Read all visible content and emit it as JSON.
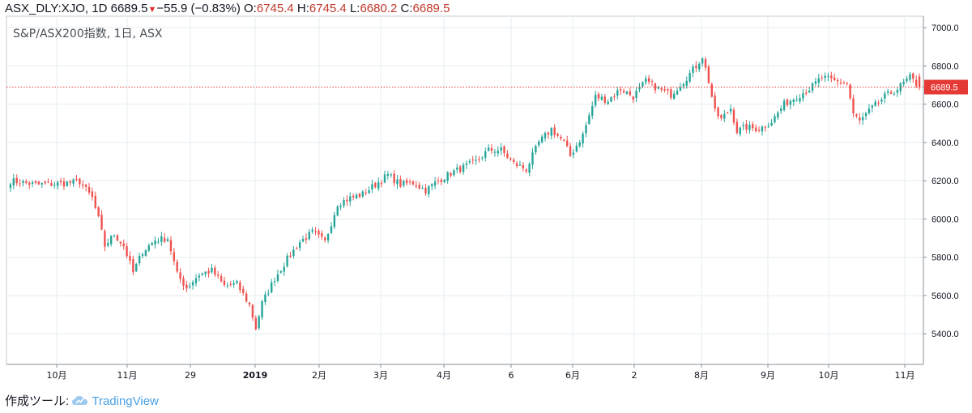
{
  "header": {
    "symbol": "ASX_DLY:XJO, 1D",
    "last": "6689.5",
    "change": "−55.9 (−0.83%)",
    "o_label": "O:",
    "o_value": "6745.4",
    "h_label": "H:",
    "h_value": "6745.4",
    "l_label": "L:",
    "l_value": "6680.2",
    "c_label": "C:",
    "c_value": "6689.5"
  },
  "footer": {
    "label": "作成ツール:",
    "brand": "TradingView"
  },
  "colors": {
    "up": "#26a69a",
    "down": "#ef5350",
    "grid": "#e6edf0",
    "last_price": "#e53935"
  },
  "chart_data": {
    "type": "candlestick",
    "title": "S&P/ASX200指数, 1日, ASX",
    "ylim": [
      5240,
      7060
    ],
    "y_ticks": [
      "7000.0",
      "6800.0",
      "6600.0",
      "6400.0",
      "6200.0",
      "6000.0",
      "5800.0",
      "5600.0",
      "5400.0"
    ],
    "x_ticks": [
      "10月",
      "11月",
      "29",
      "2019",
      "2月",
      "3月",
      "4月",
      "6",
      "6月",
      "2",
      "8月",
      "9月",
      "10月",
      "11月"
    ],
    "last_price_label": "6689.5",
    "last_price": 6689.5,
    "grid": true,
    "anchors": [
      [
        0,
        6200
      ],
      [
        8,
        6180
      ],
      [
        16,
        6185
      ],
      [
        22,
        6195
      ],
      [
        26,
        6110
      ],
      [
        28,
        6000
      ],
      [
        30,
        5860
      ],
      [
        33,
        5920
      ],
      [
        36,
        5860
      ],
      [
        39,
        5720
      ],
      [
        42,
        5830
      ],
      [
        46,
        5890
      ],
      [
        50,
        5900
      ],
      [
        53,
        5710
      ],
      [
        56,
        5640
      ],
      [
        60,
        5710
      ],
      [
        64,
        5730
      ],
      [
        68,
        5650
      ],
      [
        72,
        5660
      ],
      [
        76,
        5550
      ],
      [
        78,
        5430
      ],
      [
        80,
        5560
      ],
      [
        84,
        5690
      ],
      [
        88,
        5790
      ],
      [
        92,
        5880
      ],
      [
        96,
        5930
      ],
      [
        100,
        5880
      ],
      [
        104,
        6080
      ],
      [
        108,
        6110
      ],
      [
        112,
        6130
      ],
      [
        116,
        6180
      ],
      [
        120,
        6230
      ],
      [
        124,
        6180
      ],
      [
        128,
        6190
      ],
      [
        132,
        6150
      ],
      [
        136,
        6200
      ],
      [
        140,
        6240
      ],
      [
        144,
        6270
      ],
      [
        148,
        6300
      ],
      [
        152,
        6360
      ],
      [
        156,
        6360
      ],
      [
        160,
        6290
      ],
      [
        164,
        6260
      ],
      [
        168,
        6400
      ],
      [
        172,
        6470
      ],
      [
        176,
        6400
      ],
      [
        178,
        6330
      ],
      [
        182,
        6440
      ],
      [
        186,
        6640
      ],
      [
        190,
        6620
      ],
      [
        194,
        6680
      ],
      [
        198,
        6640
      ],
      [
        202,
        6720
      ],
      [
        206,
        6680
      ],
      [
        210,
        6650
      ],
      [
        214,
        6720
      ],
      [
        218,
        6800
      ],
      [
        220,
        6850
      ],
      [
        222,
        6720
      ],
      [
        224,
        6560
      ],
      [
        226,
        6520
      ],
      [
        229,
        6580
      ],
      [
        231,
        6460
      ],
      [
        234,
        6480
      ],
      [
        238,
        6470
      ],
      [
        242,
        6510
      ],
      [
        246,
        6600
      ],
      [
        250,
        6640
      ],
      [
        254,
        6680
      ],
      [
        258,
        6740
      ],
      [
        262,
        6720
      ],
      [
        266,
        6710
      ],
      [
        268,
        6550
      ],
      [
        270,
        6510
      ],
      [
        274,
        6580
      ],
      [
        278,
        6640
      ],
      [
        282,
        6680
      ],
      [
        286,
        6740
      ],
      [
        289,
        6689
      ]
    ]
  }
}
